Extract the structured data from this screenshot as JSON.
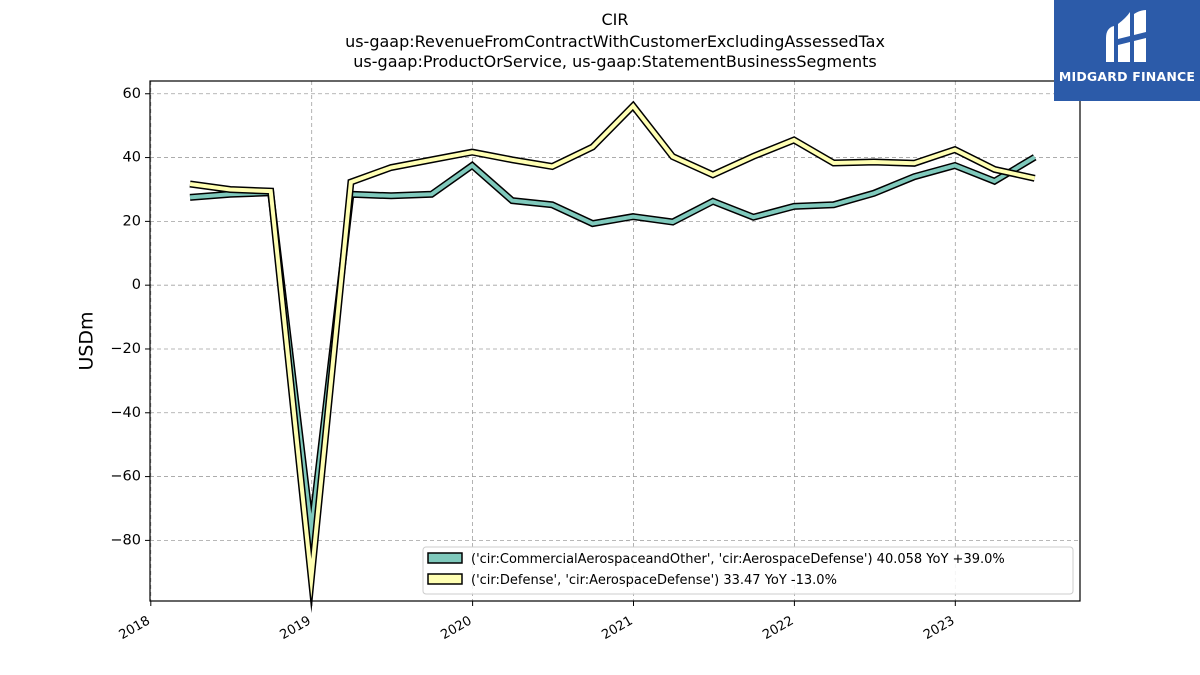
{
  "header": {
    "title": "CIR",
    "subtitle1": "us-gaap:RevenueFromContractWithCustomerExcludingAssessedTax",
    "subtitle2": "us-gaap:ProductOrService, us-gaap:StatementBusinessSegments"
  },
  "logo": {
    "text": "MIDGARD FINANCE",
    "color": "#2c5ba9"
  },
  "chart_data": {
    "type": "line",
    "ylabel": "USDm",
    "ylim": [
      -99,
      64
    ],
    "xlim": [
      2017.995,
      2023.775
    ],
    "yticks": [
      60,
      40,
      20,
      0,
      -20,
      -40,
      -60,
      -80
    ],
    "ytick_labels": [
      "60",
      "40",
      "20",
      "0",
      "−20",
      "−40",
      "−60",
      "−80"
    ],
    "xticks": [
      2018,
      2019,
      2020,
      2021,
      2022,
      2023
    ],
    "xtick_labels": [
      "2018",
      "2019",
      "2020",
      "2021",
      "2022",
      "2023"
    ],
    "grid": true,
    "legend_position": "bottom-right",
    "series": [
      {
        "name": "('cir:CommercialAerospaceandOther', 'cir:AerospaceDefense') 40.058 YoY +39.0%",
        "color": "#7fc9bc",
        "x": [
          "2018-03-31",
          "2018-06-30",
          "2018-09-30",
          "2018-12-31",
          "2019-03-31",
          "2019-06-30",
          "2019-09-30",
          "2019-12-31",
          "2020-03-31",
          "2020-06-30",
          "2020-09-30",
          "2020-12-31",
          "2021-03-31",
          "2021-06-30",
          "2021-09-30",
          "2021-12-31",
          "2022-03-31",
          "2022-06-30",
          "2022-09-30",
          "2022-12-31",
          "2023-03-31",
          "2023-06-30"
        ],
        "values": [
          27.5,
          28.5,
          29.0,
          -77.0,
          28.5,
          28.0,
          28.5,
          37.5,
          26.5,
          25.2,
          19.3,
          21.5,
          19.8,
          26.3,
          21.3,
          24.7,
          25.2,
          28.8,
          34.0,
          37.5,
          32.6,
          40.1
        ]
      },
      {
        "name": "('cir:Defense', 'cir:AerospaceDefense') 33.47 YoY -13.0%",
        "color": "#ffffb3",
        "x": [
          "2018-03-31",
          "2018-06-30",
          "2018-09-30",
          "2018-12-31",
          "2019-03-31",
          "2019-06-30",
          "2019-09-30",
          "2019-12-31",
          "2020-03-31",
          "2020-06-30",
          "2020-09-30",
          "2020-12-31",
          "2021-03-31",
          "2021-06-30",
          "2021-09-30",
          "2021-12-31",
          "2022-03-31",
          "2022-06-30",
          "2022-09-30",
          "2022-12-31",
          "2023-03-31",
          "2023-06-30"
        ],
        "values": [
          31.7,
          30.0,
          29.5,
          -92.0,
          32.3,
          36.9,
          39.3,
          41.7,
          39.3,
          37.2,
          43.3,
          56.2,
          40.3,
          34.6,
          40.4,
          45.5,
          38.3,
          38.6,
          38.2,
          42.5,
          36.3,
          33.5
        ]
      }
    ]
  }
}
